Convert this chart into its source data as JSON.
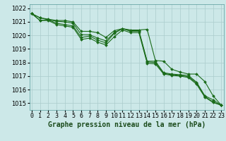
{
  "title": "Graphe pression niveau de la mer (hPa)",
  "bg_color": "#cce8e8",
  "grid_color": "#aacccc",
  "line_color": "#1a6b1a",
  "hours": [
    0,
    1,
    2,
    3,
    4,
    5,
    6,
    7,
    8,
    9,
    10,
    11,
    12,
    13,
    14,
    15,
    16,
    17,
    18,
    19,
    20,
    21,
    22,
    23
  ],
  "series": [
    [
      1021.6,
      1021.3,
      1021.2,
      1021.1,
      1021.1,
      1021.0,
      1020.3,
      1020.3,
      1020.2,
      1019.85,
      1020.35,
      1020.5,
      1020.4,
      1020.4,
      1020.45,
      1018.15,
      1018.1,
      1017.5,
      1017.3,
      1017.15,
      1017.15,
      1016.6,
      1015.55,
      1014.85
    ],
    [
      1021.6,
      1021.3,
      1021.15,
      1021.05,
      1021.0,
      1020.9,
      1020.05,
      1020.05,
      1019.8,
      1019.6,
      1020.2,
      1020.5,
      1020.35,
      1020.35,
      1018.1,
      1018.1,
      1017.25,
      1017.15,
      1017.1,
      1017.05,
      1016.55,
      1015.55,
      1015.25,
      1014.85
    ],
    [
      1021.6,
      1021.1,
      1021.15,
      1020.9,
      1020.8,
      1020.7,
      1019.85,
      1019.95,
      1019.65,
      1019.45,
      1020.15,
      1020.5,
      1020.3,
      1020.3,
      1018.05,
      1018.0,
      1017.2,
      1017.1,
      1017.05,
      1016.95,
      1016.5,
      1015.5,
      1015.1,
      1014.85
    ],
    [
      1021.6,
      1021.1,
      1021.1,
      1020.8,
      1020.7,
      1020.6,
      1019.7,
      1019.8,
      1019.5,
      1019.3,
      1019.9,
      1020.4,
      1020.2,
      1020.2,
      1017.95,
      1017.9,
      1017.15,
      1017.05,
      1017.0,
      1016.9,
      1016.4,
      1015.45,
      1015.05,
      1014.85
    ]
  ],
  "ylim": [
    1014.5,
    1022.3
  ],
  "yticks": [
    1015,
    1016,
    1017,
    1018,
    1019,
    1020,
    1021,
    1022
  ],
  "xticks": [
    0,
    1,
    2,
    3,
    4,
    5,
    6,
    7,
    8,
    9,
    10,
    11,
    12,
    13,
    14,
    15,
    16,
    17,
    18,
    19,
    20,
    21,
    22,
    23
  ],
  "tick_fontsize": 6,
  "title_fontsize": 7,
  "markersize": 2.0,
  "linewidth": 0.8
}
